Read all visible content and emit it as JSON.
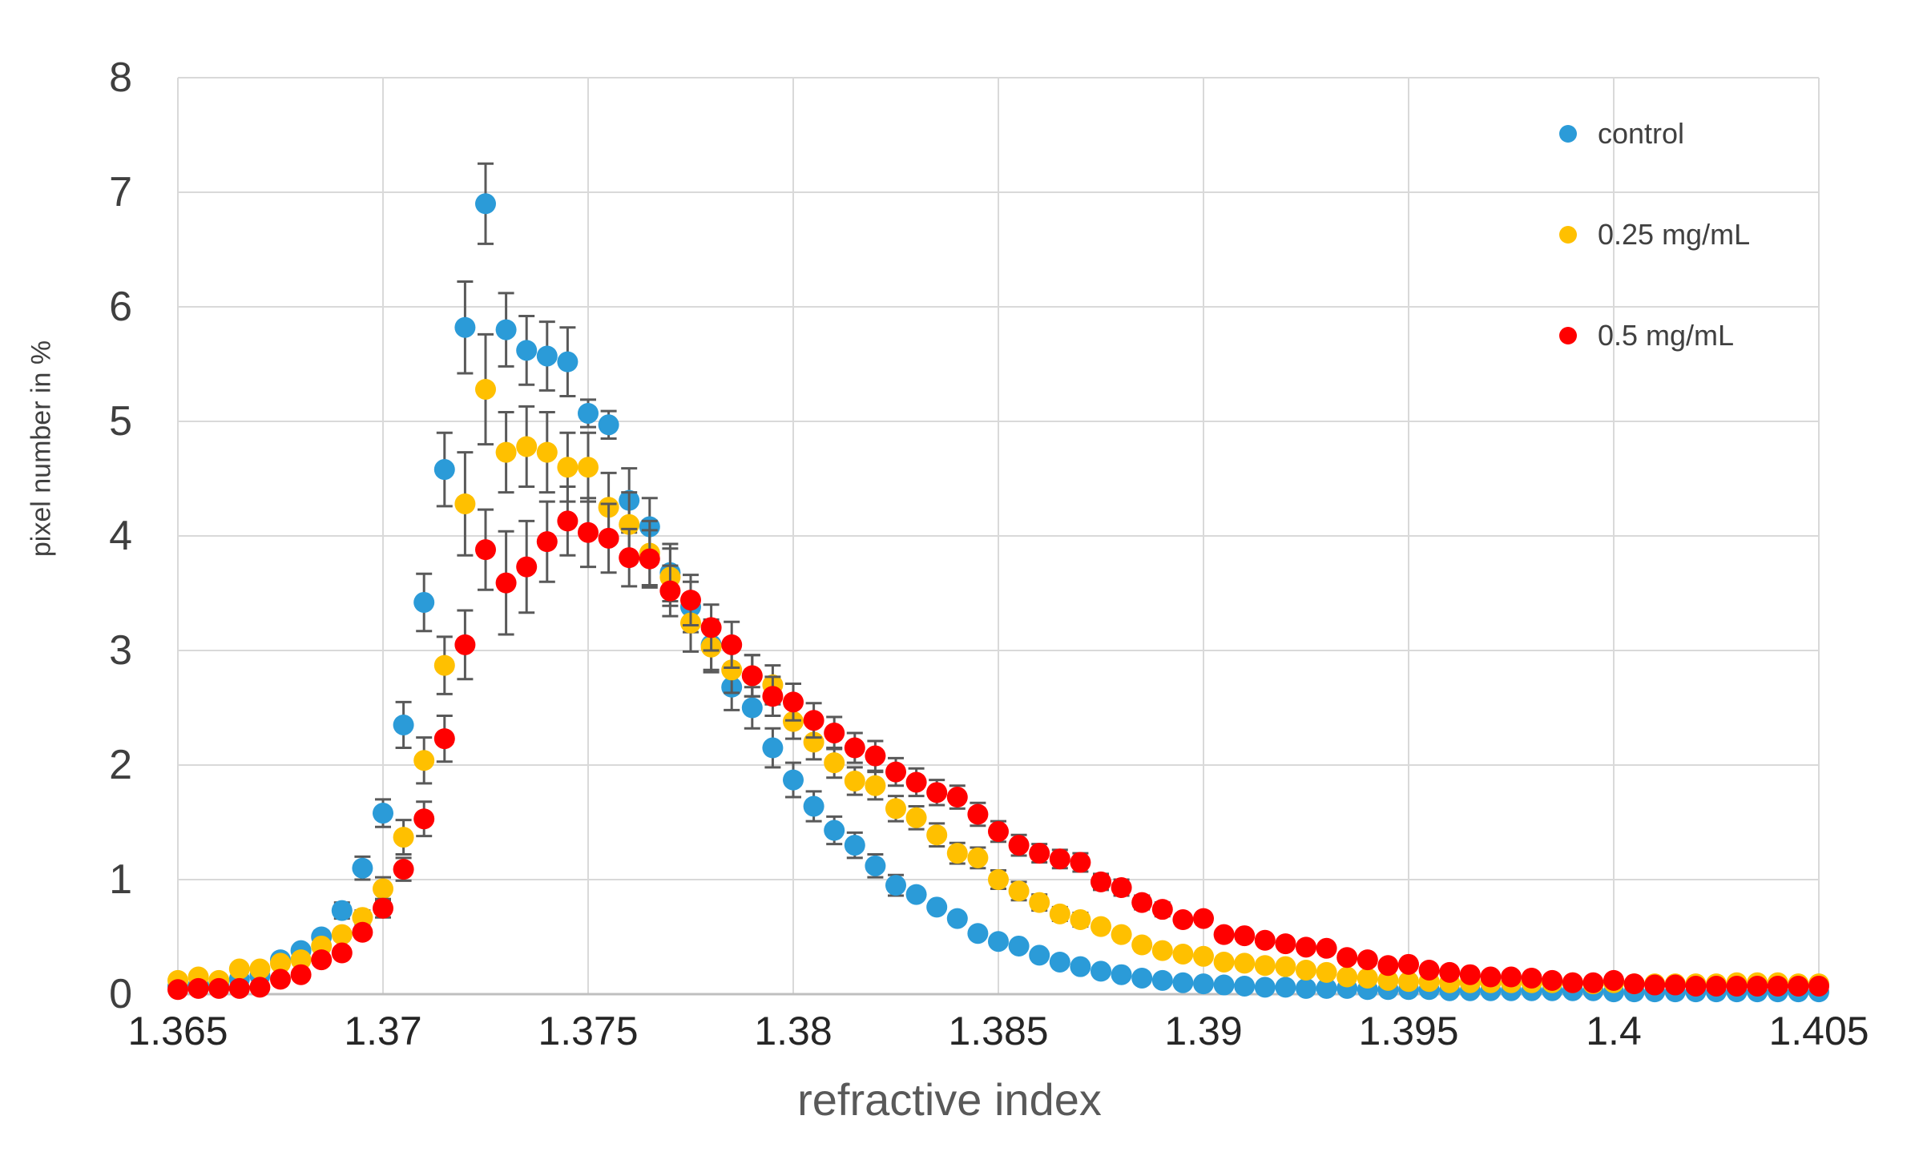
{
  "chart_data": {
    "type": "scatter",
    "title": "",
    "xlabel": "refractive index",
    "ylabel": "pixel number in %",
    "x_start": 1.365,
    "x_step": 0.0005,
    "n_points": 81,
    "xlim": [
      1.365,
      1.405
    ],
    "ylim": [
      0,
      8
    ],
    "x_ticks": [
      "1.365",
      "1.37",
      "1.375",
      "1.38",
      "1.385",
      "1.39",
      "1.395",
      "1.4",
      "1.405"
    ],
    "y_ticks": [
      "0",
      "1",
      "2",
      "3",
      "4",
      "5",
      "6",
      "7",
      "8"
    ],
    "grid": true,
    "legend_position": "top-right",
    "error_bar_color": "#595959",
    "gridline_color": "#d9d9d9",
    "axis_line_color": "#bfbfbf",
    "series": [
      {
        "name": "control",
        "color": "#2b9bd8",
        "values": [
          0.07,
          0.08,
          0.09,
          0.13,
          0.16,
          0.3,
          0.38,
          0.5,
          0.73,
          1.1,
          1.58,
          2.35,
          3.42,
          4.58,
          5.82,
          6.9,
          5.8,
          5.62,
          5.57,
          5.52,
          5.07,
          4.97,
          4.31,
          4.08,
          3.68,
          3.38,
          3.05,
          2.68,
          2.5,
          2.15,
          1.87,
          1.64,
          1.43,
          1.3,
          1.12,
          0.95,
          0.87,
          0.76,
          0.66,
          0.53,
          0.46,
          0.42,
          0.34,
          0.28,
          0.24,
          0.2,
          0.17,
          0.14,
          0.12,
          0.1,
          0.09,
          0.08,
          0.07,
          0.06,
          0.06,
          0.05,
          0.05,
          0.05,
          0.04,
          0.04,
          0.04,
          0.04,
          0.03,
          0.03,
          0.03,
          0.03,
          0.03,
          0.03,
          0.03,
          0.03,
          0.02,
          0.02,
          0.02,
          0.02,
          0.02,
          0.02,
          0.02,
          0.02,
          0.02,
          0.02,
          0.02
        ],
        "err": [
          0.02,
          0.02,
          0.02,
          0.03,
          0.03,
          0.04,
          0.04,
          0.05,
          0.07,
          0.1,
          0.12,
          0.2,
          0.25,
          0.32,
          0.4,
          0.35,
          0.32,
          0.3,
          0.3,
          0.3,
          0.12,
          0.12,
          0.28,
          0.25,
          0.25,
          0.22,
          0.22,
          0.2,
          0.18,
          0.17,
          0.15,
          0.13,
          0.12,
          0.11,
          0.1,
          0.09,
          0.02,
          0.02,
          0.02,
          0.02,
          0.02,
          0.02,
          0.02,
          0.02,
          0.02,
          0.02,
          0.02,
          0.02,
          0.02,
          0.02,
          0.02,
          0.02,
          0.02,
          0.02,
          0.02,
          0.02,
          0.02,
          0.02,
          0.02,
          0.02,
          0.02,
          0.02,
          0.02,
          0.02,
          0.02,
          0.02,
          0.02,
          0.02,
          0.02,
          0.02,
          0.02,
          0.02,
          0.02,
          0.02,
          0.02,
          0.02,
          0.02,
          0.02,
          0.02,
          0.02,
          0.02
        ]
      },
      {
        "name": "0.25 mg/mL",
        "color": "#ffc000",
        "values": [
          0.12,
          0.15,
          0.12,
          0.22,
          0.22,
          0.27,
          0.3,
          0.42,
          0.52,
          0.67,
          0.92,
          1.37,
          2.04,
          2.87,
          4.28,
          5.28,
          4.73,
          4.78,
          4.73,
          4.6,
          4.6,
          4.25,
          4.1,
          3.85,
          3.64,
          3.24,
          3.03,
          2.83,
          2.78,
          2.7,
          2.38,
          2.2,
          2.02,
          1.86,
          1.82,
          1.62,
          1.54,
          1.39,
          1.23,
          1.19,
          1.0,
          0.9,
          0.8,
          0.7,
          0.65,
          0.59,
          0.52,
          0.43,
          0.38,
          0.35,
          0.33,
          0.28,
          0.27,
          0.25,
          0.24,
          0.21,
          0.19,
          0.15,
          0.14,
          0.12,
          0.11,
          0.11,
          0.1,
          0.1,
          0.1,
          0.1,
          0.1,
          0.1,
          0.1,
          0.09,
          0.1,
          0.09,
          0.09,
          0.09,
          0.09,
          0.09,
          0.1,
          0.1,
          0.1,
          0.09,
          0.09
        ],
        "err": [
          0.03,
          0.03,
          0.03,
          0.04,
          0.04,
          0.04,
          0.04,
          0.05,
          0.05,
          0.06,
          0.1,
          0.15,
          0.2,
          0.25,
          0.45,
          0.48,
          0.35,
          0.35,
          0.35,
          0.3,
          0.3,
          0.3,
          0.28,
          0.28,
          0.25,
          0.25,
          0.22,
          0.2,
          0.18,
          0.17,
          0.15,
          0.15,
          0.13,
          0.12,
          0.12,
          0.11,
          0.1,
          0.1,
          0.09,
          0.09,
          0.08,
          0.08,
          0.07,
          0.06,
          0.06,
          0.05,
          0.05,
          0.05,
          0.02,
          0.02,
          0.02,
          0.02,
          0.02,
          0.02,
          0.02,
          0.02,
          0.02,
          0.02,
          0.02,
          0.02,
          0.02,
          0.02,
          0.02,
          0.02,
          0.02,
          0.02,
          0.02,
          0.02,
          0.02,
          0.02,
          0.02,
          0.02,
          0.02,
          0.02,
          0.02,
          0.02,
          0.02,
          0.02,
          0.02,
          0.02,
          0.02
        ]
      },
      {
        "name": "0.5 mg/mL",
        "color": "#ff0000",
        "values": [
          0.04,
          0.05,
          0.05,
          0.05,
          0.06,
          0.13,
          0.17,
          0.3,
          0.36,
          0.54,
          0.75,
          1.09,
          1.53,
          2.23,
          3.05,
          3.88,
          3.59,
          3.73,
          3.95,
          4.13,
          4.03,
          3.98,
          3.81,
          3.8,
          3.52,
          3.44,
          3.2,
          3.05,
          2.78,
          2.6,
          2.55,
          2.39,
          2.28,
          2.15,
          2.08,
          1.94,
          1.85,
          1.76,
          1.72,
          1.57,
          1.42,
          1.3,
          1.23,
          1.18,
          1.15,
          0.98,
          0.93,
          0.8,
          0.74,
          0.65,
          0.66,
          0.52,
          0.51,
          0.47,
          0.44,
          0.41,
          0.4,
          0.32,
          0.3,
          0.25,
          0.26,
          0.21,
          0.19,
          0.17,
          0.15,
          0.15,
          0.14,
          0.12,
          0.1,
          0.1,
          0.12,
          0.09,
          0.08,
          0.08,
          0.07,
          0.07,
          0.07,
          0.07,
          0.07,
          0.07,
          0.07
        ],
        "err": [
          0.02,
          0.02,
          0.02,
          0.02,
          0.02,
          0.03,
          0.03,
          0.04,
          0.04,
          0.05,
          0.08,
          0.1,
          0.15,
          0.2,
          0.3,
          0.35,
          0.45,
          0.4,
          0.35,
          0.3,
          0.3,
          0.3,
          0.25,
          0.25,
          0.22,
          0.22,
          0.2,
          0.2,
          0.18,
          0.17,
          0.16,
          0.15,
          0.14,
          0.13,
          0.13,
          0.12,
          0.12,
          0.11,
          0.1,
          0.1,
          0.09,
          0.09,
          0.08,
          0.08,
          0.08,
          0.07,
          0.07,
          0.06,
          0.06,
          0.05,
          0.05,
          0.04,
          0.04,
          0.04,
          0.04,
          0.03,
          0.03,
          0.02,
          0.02,
          0.02,
          0.02,
          0.02,
          0.02,
          0.02,
          0.02,
          0.02,
          0.02,
          0.02,
          0.02,
          0.02,
          0.02,
          0.02,
          0.02,
          0.02,
          0.02,
          0.02,
          0.02,
          0.02,
          0.02,
          0.02,
          0.02
        ]
      }
    ]
  }
}
